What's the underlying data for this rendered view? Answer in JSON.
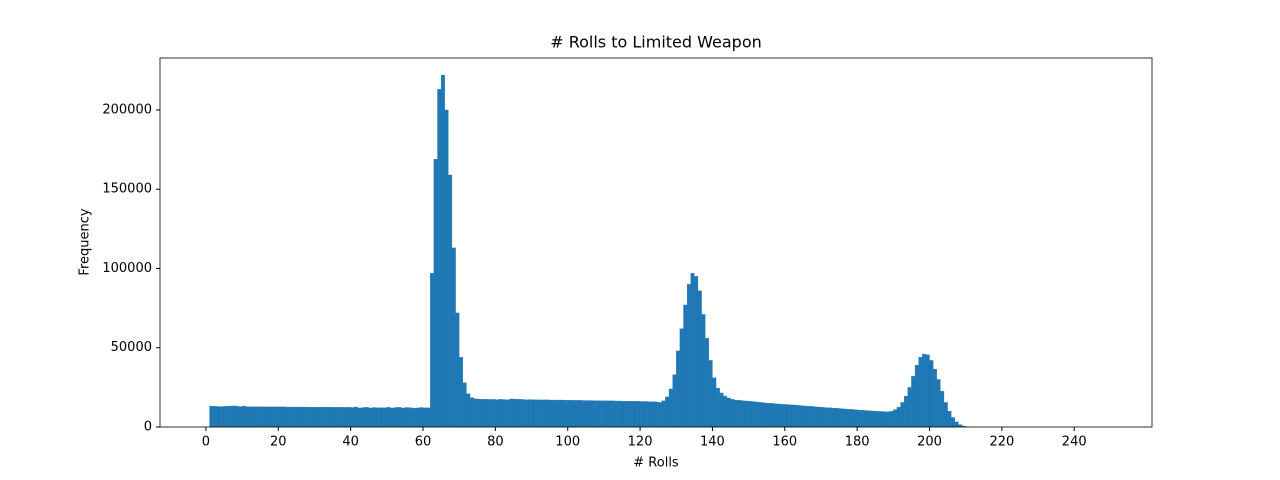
{
  "chart_data": {
    "type": "histogram",
    "title": "# Rolls to Limited Weapon",
    "xlabel": "# Rolls",
    "ylabel": "Frequency",
    "color": "#1f77b4",
    "bins": [
      1,
      2,
      3,
      4,
      5,
      6,
      7,
      8,
      9,
      10,
      11,
      12,
      13,
      14,
      15,
      16,
      17,
      18,
      19,
      20,
      21,
      22,
      23,
      24,
      25,
      26,
      27,
      28,
      29,
      30,
      31,
      32,
      33,
      34,
      35,
      36,
      37,
      38,
      39,
      40,
      41,
      42,
      43,
      44,
      45,
      46,
      47,
      48,
      49,
      50,
      51,
      52,
      53,
      54,
      55,
      56,
      57,
      58,
      59,
      60,
      61,
      62,
      63,
      64,
      65,
      66,
      67,
      68,
      69,
      70,
      71,
      72,
      73,
      74,
      75,
      76,
      77,
      78,
      79,
      80,
      81,
      82,
      83,
      84,
      85,
      86,
      87,
      88,
      89,
      90,
      91,
      92,
      93,
      94,
      95,
      96,
      97,
      98,
      99,
      100,
      101,
      102,
      103,
      104,
      105,
      106,
      107,
      108,
      109,
      110,
      111,
      112,
      113,
      114,
      115,
      116,
      117,
      118,
      119,
      120,
      121,
      122,
      123,
      124,
      125,
      126,
      127,
      128,
      129,
      130,
      131,
      132,
      133,
      134,
      135,
      136,
      137,
      138,
      139,
      140,
      141,
      142,
      143,
      144,
      145,
      146,
      147,
      148,
      149,
      150,
      151,
      152,
      153,
      154,
      155,
      156,
      157,
      158,
      159,
      160,
      161,
      162,
      163,
      164,
      165,
      166,
      167,
      168,
      169,
      170,
      171,
      172,
      173,
      174,
      175,
      176,
      177,
      178,
      179,
      180,
      181,
      182,
      183,
      184,
      185,
      186,
      187,
      188,
      189,
      190,
      191,
      192,
      193,
      194,
      195,
      196,
      197,
      198,
      199,
      200,
      201,
      202,
      203,
      204,
      205,
      206,
      207,
      208,
      209,
      210,
      211
    ],
    "counts": [
      13200,
      13100,
      12900,
      12900,
      13000,
      13200,
      13300,
      13200,
      12900,
      13200,
      12800,
      12800,
      12800,
      12800,
      12800,
      12700,
      12700,
      12700,
      12700,
      12700,
      12700,
      12600,
      12600,
      12600,
      12600,
      12600,
      12600,
      12500,
      12500,
      12500,
      12500,
      12500,
      12500,
      12500,
      12400,
      12400,
      12400,
      12400,
      12400,
      12300,
      12600,
      12000,
      12300,
      12400,
      12000,
      12300,
      12200,
      12100,
      12100,
      12400,
      12000,
      12300,
      12400,
      12000,
      12300,
      12200,
      11900,
      12000,
      12300,
      12100,
      12100,
      97000,
      169000,
      213000,
      222000,
      200000,
      159000,
      113000,
      72000,
      44000,
      28000,
      21000,
      18500,
      17800,
      17600,
      17500,
      17500,
      17400,
      17400,
      17300,
      17500,
      17300,
      17200,
      17700,
      17600,
      17500,
      17400,
      17200,
      17300,
      17200,
      17200,
      17100,
      17100,
      17100,
      17000,
      17000,
      17000,
      17000,
      16900,
      16900,
      16800,
      16800,
      16800,
      16700,
      16700,
      16700,
      16600,
      16600,
      16600,
      16500,
      16500,
      16500,
      16400,
      16400,
      16300,
      16300,
      16300,
      16200,
      16200,
      16100,
      16100,
      16000,
      16000,
      15800,
      15500,
      16500,
      19000,
      24000,
      33000,
      48000,
      62000,
      77000,
      90000,
      97000,
      95000,
      86000,
      71000,
      56000,
      42000,
      31000,
      24500,
      21500,
      19500,
      18300,
      17500,
      17000,
      16800,
      16600,
      16400,
      16200,
      16000,
      15700,
      15500,
      15200,
      15000,
      14900,
      14700,
      14500,
      14300,
      14200,
      14000,
      13900,
      13700,
      13500,
      13300,
      13100,
      13000,
      12800,
      12600,
      12400,
      12200,
      12100,
      11900,
      11800,
      11600,
      11400,
      11200,
      11100,
      10900,
      10700,
      10600,
      10400,
      10200,
      10100,
      9900,
      9800,
      9700,
      9600,
      9900,
      11000,
      12500,
      15500,
      19500,
      25000,
      32000,
      39000,
      44000,
      46000,
      45500,
      42000,
      36500,
      30000,
      22500,
      15500,
      10000,
      6000,
      3200,
      1500,
      600,
      200
    ],
    "xlim": [
      -12.7,
      261.5
    ],
    "xticks": [
      0,
      20,
      40,
      60,
      80,
      100,
      120,
      140,
      160,
      180,
      200,
      220,
      240
    ],
    "ylim": [
      0,
      232800
    ],
    "yticks": [
      0,
      50000,
      100000,
      150000,
      200000
    ]
  }
}
